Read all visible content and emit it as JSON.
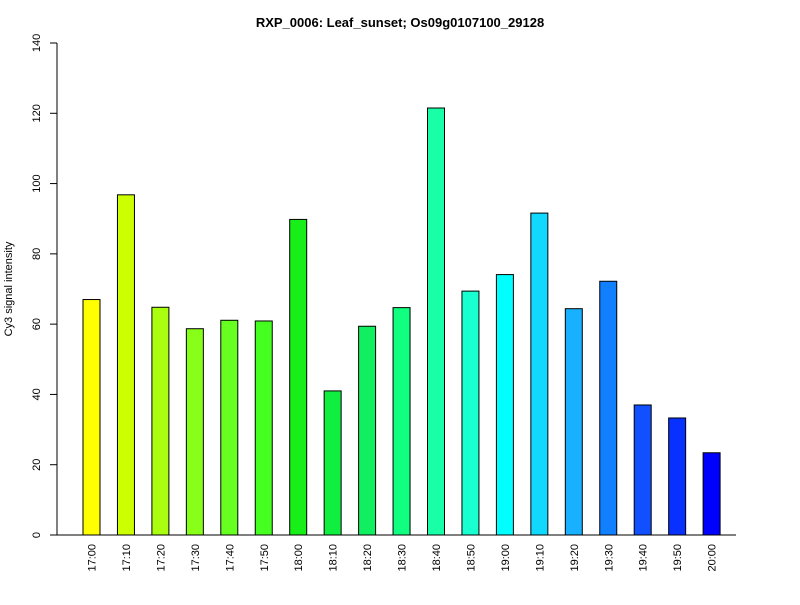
{
  "chart_data": {
    "type": "bar",
    "title": "RXP_0006: Leaf_sunset; Os09g0107100_29128",
    "xlabel": "",
    "ylabel": "Cy3 signal intensity",
    "ylim": [
      0,
      140
    ],
    "yticks": [
      0,
      20,
      40,
      60,
      80,
      100,
      120,
      140
    ],
    "grid": false,
    "legend": "none",
    "categories": [
      "17:00",
      "17:10",
      "17:20",
      "17:30",
      "17:40",
      "17:50",
      "18:00",
      "18:10",
      "18:20",
      "18:30",
      "18:40",
      "18:50",
      "19:00",
      "19:10",
      "19:20",
      "19:30",
      "19:40",
      "19:50",
      "20:00"
    ],
    "values": [
      67.0,
      96.8,
      64.8,
      58.7,
      61.1,
      60.9,
      89.8,
      41.0,
      59.4,
      64.7,
      121.5,
      69.4,
      74.1,
      91.6,
      64.4,
      72.2,
      37.0,
      33.3,
      23.4
    ],
    "colors": [
      "#ffff00",
      "#ccff00",
      "#aaff10",
      "#88ff18",
      "#66ff1f",
      "#44ff20",
      "#18ef18",
      "#10ef40",
      "#10ef60",
      "#10ff80",
      "#18ffa8",
      "#18ffd0",
      "#00ffff",
      "#10d8ff",
      "#18b0ff",
      "#1080ff",
      "#1050ff",
      "#0830ff",
      "#0000ff"
    ]
  }
}
